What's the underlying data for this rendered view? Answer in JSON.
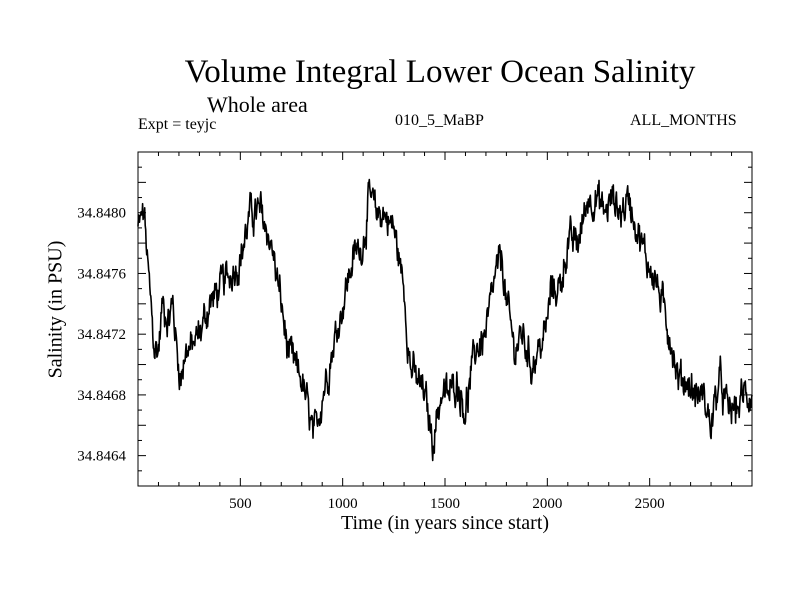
{
  "chart_data": {
    "type": "line",
    "title": "Volume Integral Lower Ocean Salinity",
    "subtitle": "Whole area",
    "experiment_label": "Expt = teyjc",
    "run_label": "010_5_MaBP",
    "months_label": "ALL_MONTHS",
    "xlabel": "Time (in years since start)",
    "ylabel": "Salinity (in PSU)",
    "xlim": [
      0,
      3000
    ],
    "ylim": [
      34.8462,
      34.8484
    ],
    "x_ticks": [
      500,
      1000,
      1500,
      2000,
      2500
    ],
    "y_ticks": [
      34.8464,
      34.8468,
      34.8472,
      34.8476,
      34.848
    ],
    "y_tick_labels": [
      "34.8464",
      "34.8468",
      "34.8472",
      "34.8476",
      "34.8480"
    ],
    "grid": false,
    "line_color": "#000000",
    "series": [
      {
        "name": "Salinity",
        "x": [
          0,
          30,
          50,
          80,
          100,
          120,
          150,
          170,
          190,
          210,
          230,
          260,
          300,
          350,
          400,
          450,
          500,
          550,
          600,
          650,
          700,
          730,
          760,
          800,
          830,
          860,
          900,
          950,
          1000,
          1050,
          1100,
          1130,
          1160,
          1200,
          1250,
          1300,
          1330,
          1360,
          1400,
          1440,
          1480,
          1520,
          1560,
          1600,
          1650,
          1700,
          1750,
          1780,
          1800,
          1840,
          1880,
          1920,
          1960,
          1990,
          2020,
          2060,
          2100,
          2150,
          2200,
          2240,
          2280,
          2320,
          2360,
          2400,
          2440,
          2480,
          2520,
          2560,
          2600,
          2640,
          2680,
          2720,
          2760,
          2800,
          2840,
          2880,
          2920,
          2960,
          3000
        ],
        "y": [
          34.8479,
          34.848,
          34.8476,
          34.8471,
          34.8471,
          34.8474,
          34.8473,
          34.8474,
          34.8471,
          34.8469,
          34.8471,
          34.8471,
          34.8472,
          34.8474,
          34.8475,
          34.8476,
          34.8477,
          34.848,
          34.848,
          34.8478,
          34.8474,
          34.8471,
          34.847,
          34.8469,
          34.8467,
          34.8465,
          34.8468,
          34.8471,
          34.8474,
          34.8477,
          34.8478,
          34.8481,
          34.848,
          34.848,
          34.8479,
          34.8475,
          34.847,
          34.8469,
          34.8468,
          34.8465,
          34.8468,
          34.8468,
          34.8469,
          34.8467,
          34.8471,
          34.8472,
          34.8476,
          34.8477,
          34.8474,
          34.8471,
          34.8472,
          34.847,
          34.8471,
          34.8472,
          34.8475,
          34.8475,
          34.8478,
          34.8478,
          34.8481,
          34.8481,
          34.848,
          34.8481,
          34.848,
          34.8481,
          34.8479,
          34.8477,
          34.8476,
          34.8474,
          34.8472,
          34.8469,
          34.8469,
          34.8468,
          34.8468,
          34.8466,
          34.8469,
          34.8467,
          34.8467,
          34.8468,
          34.8468
        ]
      }
    ]
  }
}
